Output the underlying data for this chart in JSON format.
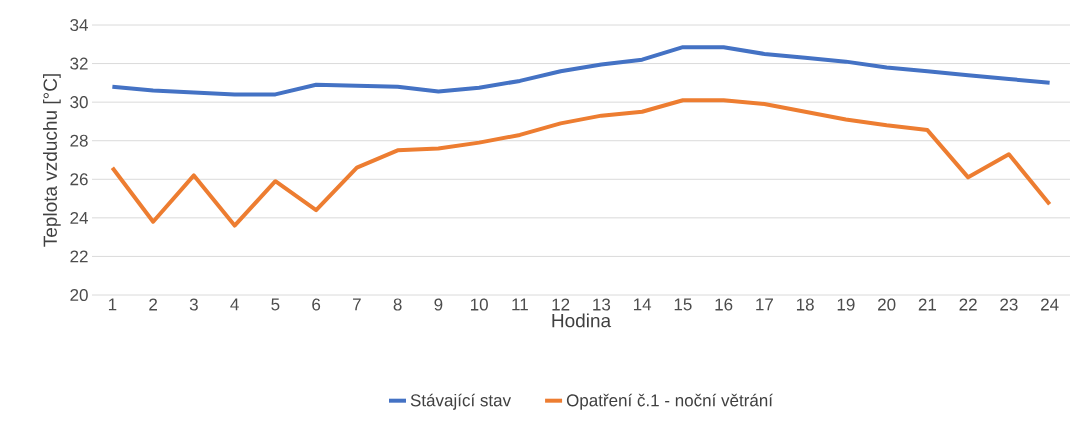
{
  "chart_data": {
    "type": "line",
    "xlabel": "Hodina",
    "ylabel": "Teplota vzduchu [°C]",
    "categories": [
      "1",
      "2",
      "3",
      "4",
      "5",
      "6",
      "7",
      "8",
      "9",
      "10",
      "11",
      "12",
      "13",
      "14",
      "15",
      "16",
      "17",
      "18",
      "19",
      "20",
      "21",
      "22",
      "23",
      "24"
    ],
    "series": [
      {
        "name": "Stávající stav",
        "color": "#4472c4",
        "values": [
          30.8,
          30.6,
          30.5,
          30.4,
          30.4,
          30.9,
          30.85,
          30.8,
          30.55,
          30.75,
          31.1,
          31.6,
          31.95,
          32.2,
          32.85,
          32.85,
          32.5,
          32.3,
          32.1,
          31.8,
          31.6,
          31.4,
          31.2,
          31.0
        ]
      },
      {
        "name": "Opatření č.1 - noční větrání",
        "color": "#ed7d31",
        "values": [
          26.6,
          23.8,
          26.2,
          23.6,
          25.9,
          24.4,
          26.6,
          27.5,
          27.6,
          27.9,
          28.3,
          28.9,
          29.3,
          29.5,
          30.1,
          30.1,
          29.9,
          29.5,
          29.1,
          28.8,
          28.55,
          26.1,
          27.3,
          24.7
        ]
      }
    ],
    "ylim": [
      20,
      34
    ],
    "yticks": [
      20,
      22,
      24,
      26,
      28,
      30,
      32,
      34
    ],
    "grid": "y",
    "legend": "bottom",
    "marker": "none",
    "line_style": "solid"
  }
}
